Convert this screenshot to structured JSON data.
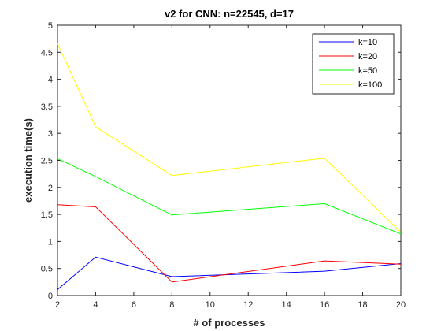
{
  "chart_data": {
    "type": "line",
    "title": "v2 for CNN: n=22545, d=17",
    "xlabel": "# of processes",
    "ylabel": "execution time(s)",
    "x": [
      2,
      4,
      8,
      16,
      20
    ],
    "xlim": [
      2,
      20
    ],
    "ylim": [
      0,
      5
    ],
    "xticks": [
      2,
      4,
      6,
      8,
      10,
      12,
      14,
      16,
      18,
      20
    ],
    "yticks": [
      0,
      0.5,
      1,
      1.5,
      2,
      2.5,
      3,
      3.5,
      4,
      4.5,
      5
    ],
    "xtick_labels": [
      "2",
      "4",
      "6",
      "8",
      "10",
      "12",
      "14",
      "16",
      "18",
      "20"
    ],
    "ytick_labels": [
      "0",
      "0.5",
      "1",
      "1.5",
      "2",
      "2.5",
      "3",
      "3.5",
      "4",
      "4.5",
      "5"
    ],
    "grid": false,
    "legend_position": "top-right",
    "series": [
      {
        "name": "k=10",
        "color": "#0000ff",
        "values": [
          0.11,
          0.71,
          0.35,
          0.45,
          0.59
        ]
      },
      {
        "name": "k=20",
        "color": "#ff0000",
        "values": [
          1.68,
          1.64,
          0.25,
          0.64,
          0.58
        ]
      },
      {
        "name": "k=50",
        "color": "#00ff00",
        "values": [
          2.53,
          2.2,
          1.49,
          1.7,
          1.14
        ]
      },
      {
        "name": "k=100",
        "color": "#ffff00",
        "values": [
          4.66,
          3.12,
          2.22,
          2.54,
          1.17
        ]
      }
    ]
  }
}
